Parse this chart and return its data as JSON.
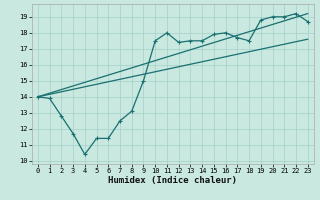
{
  "xlabel": "Humidex (Indice chaleur)",
  "bg_color": "#c8e8e0",
  "grid_color": "#a8d4cc",
  "line_color": "#1a7070",
  "xlim": [
    -0.5,
    23.5
  ],
  "ylim": [
    9.8,
    19.8
  ],
  "yticks": [
    10,
    11,
    12,
    13,
    14,
    15,
    16,
    17,
    18,
    19
  ],
  "xticks": [
    0,
    1,
    2,
    3,
    4,
    5,
    6,
    7,
    8,
    9,
    10,
    11,
    12,
    13,
    14,
    15,
    16,
    17,
    18,
    19,
    20,
    21,
    22,
    23
  ],
  "series1_x": [
    0,
    1,
    2,
    3,
    4,
    5,
    6,
    7,
    8,
    9,
    10,
    11,
    12,
    13,
    14,
    15,
    16,
    17,
    18,
    19,
    20,
    21,
    22,
    23
  ],
  "series1_y": [
    14.0,
    13.9,
    12.8,
    11.7,
    10.4,
    11.4,
    11.4,
    12.5,
    13.1,
    15.0,
    17.5,
    18.0,
    17.4,
    17.5,
    17.5,
    17.9,
    18.0,
    17.7,
    17.5,
    18.8,
    19.0,
    19.0,
    19.2,
    18.7
  ],
  "series2_x": [
    0,
    23
  ],
  "series2_y": [
    14.0,
    17.6
  ],
  "series3_x": [
    0,
    23
  ],
  "series3_y": [
    14.0,
    19.2
  ]
}
